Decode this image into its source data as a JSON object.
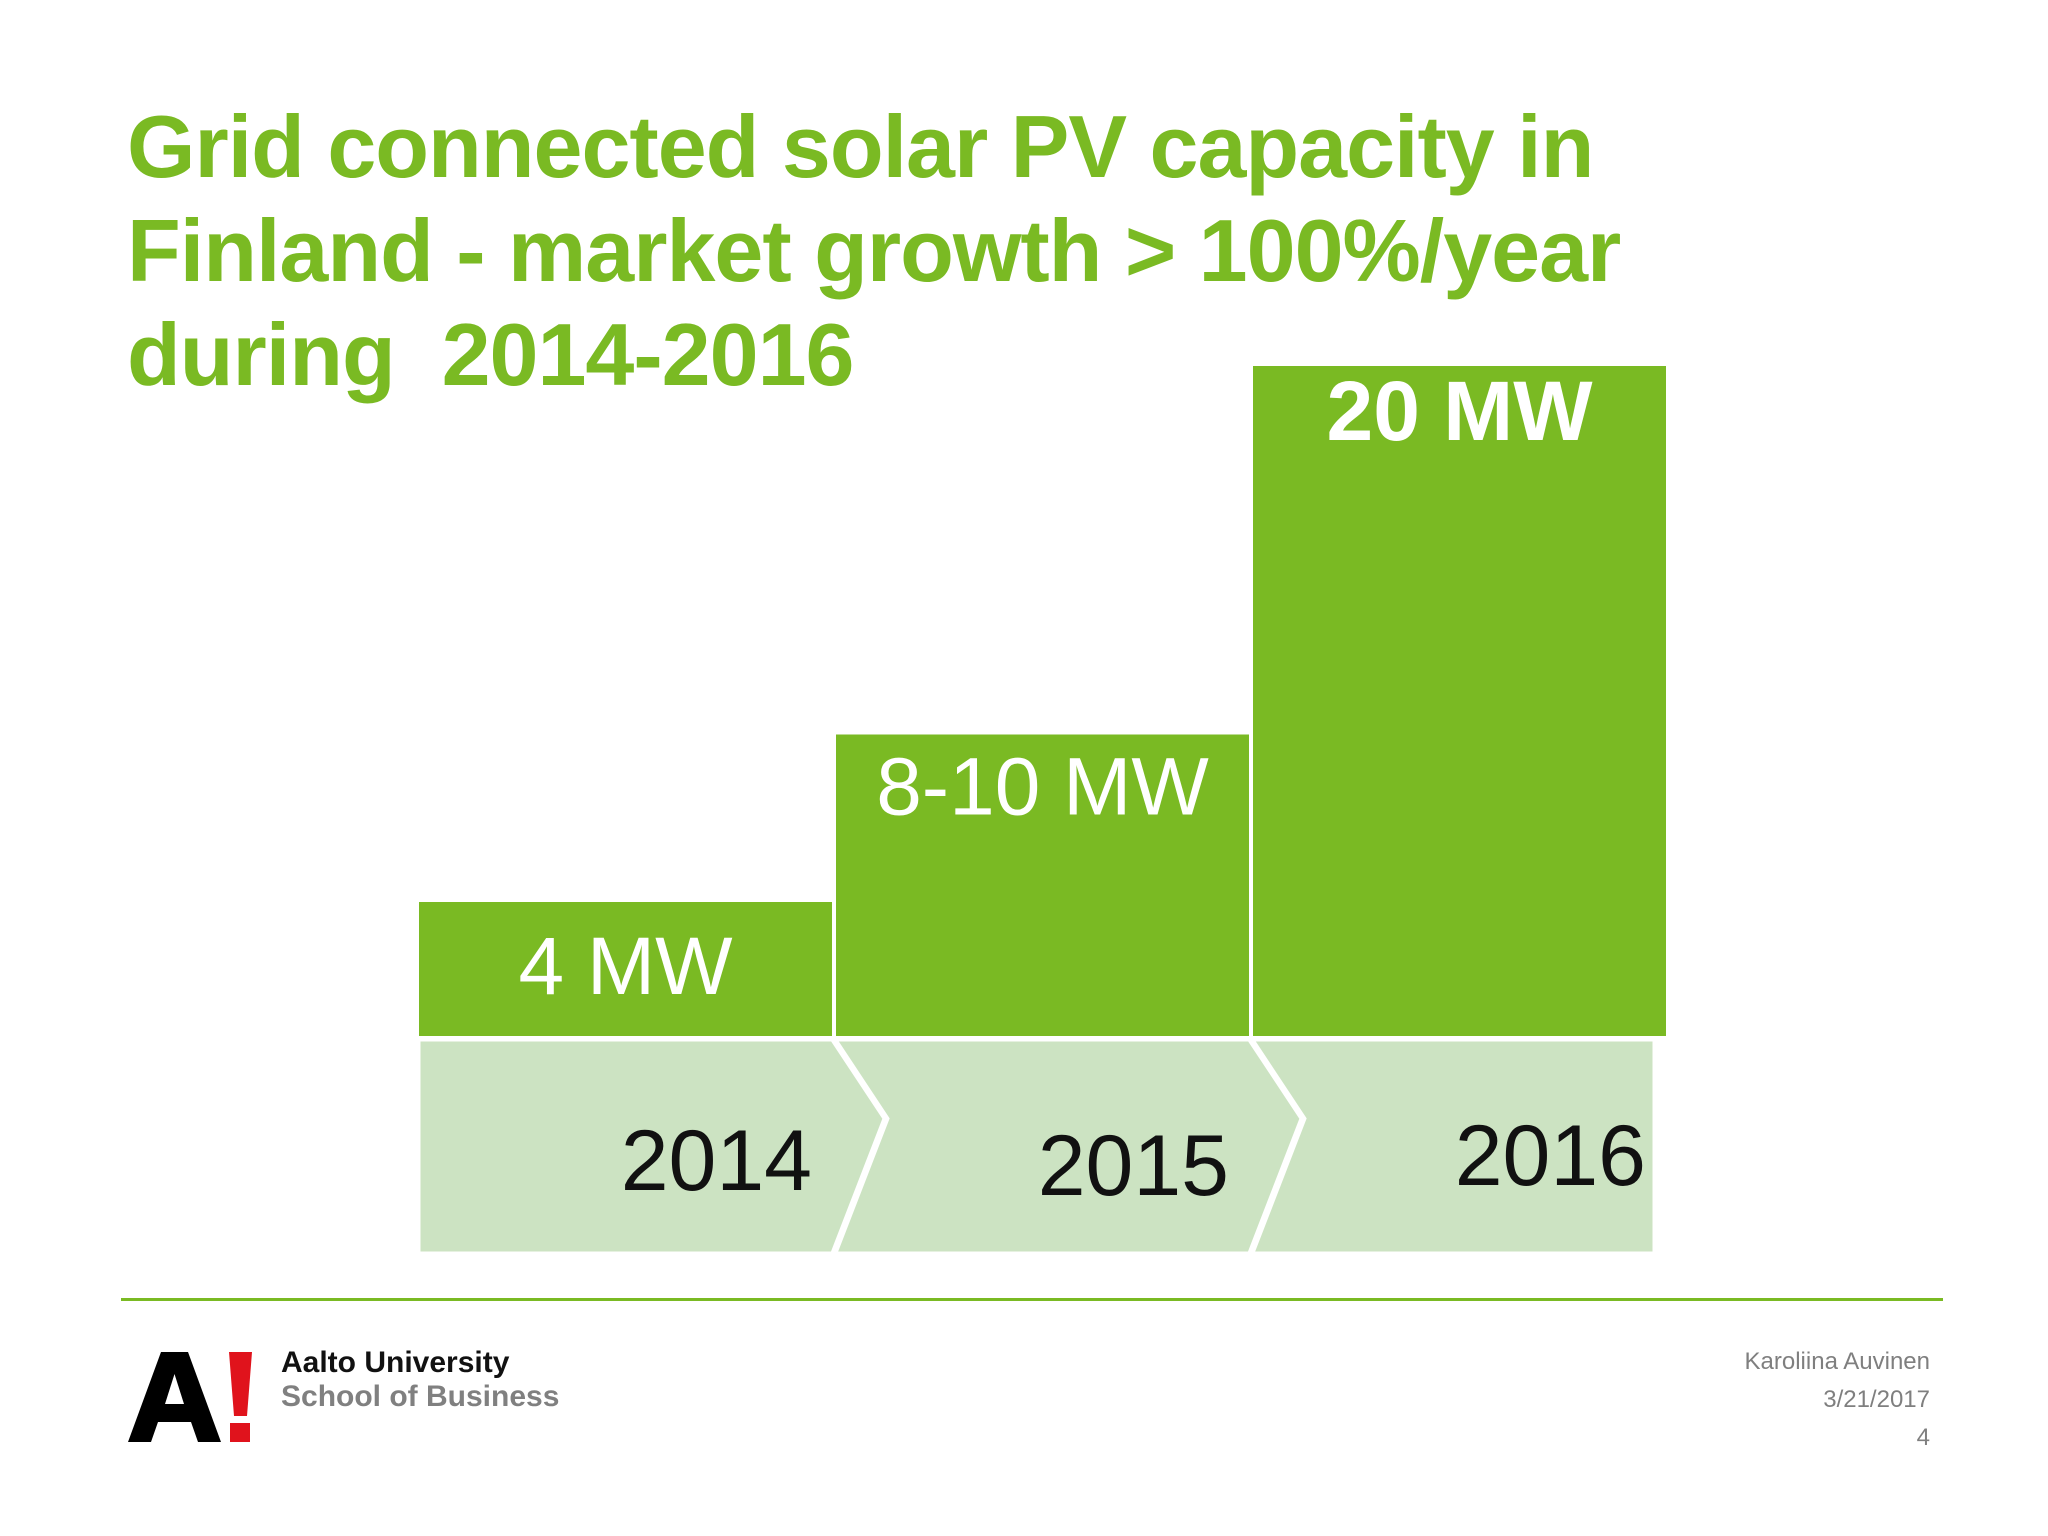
{
  "slide": {
    "title_lines": [
      "Grid connected solar PV capacity in",
      "Finland - market growth > 100%/year",
      "during  2014-2016"
    ]
  },
  "colors": {
    "accent": "#7aba23",
    "light": "#cce3c2",
    "bar_text": "#ffffff",
    "year_text": "#111111"
  },
  "chart_data": {
    "type": "bar",
    "categories": [
      "2014",
      "2015",
      "2016"
    ],
    "values": [
      4,
      9,
      20
    ],
    "data_labels": [
      "4 MW",
      "8-10 MW",
      "20 MW"
    ],
    "unit": "MW",
    "ylim": [
      0,
      20
    ],
    "grid": false,
    "legend": "none"
  },
  "footer": {
    "org_line1": "Aalto University",
    "org_line2": "School of Business",
    "author": "Karoliina Auvinen",
    "date": "3/21/2017",
    "page": "4"
  },
  "logo": {
    "icon": "aalto-a-exclamation-logo",
    "text": "A!"
  }
}
